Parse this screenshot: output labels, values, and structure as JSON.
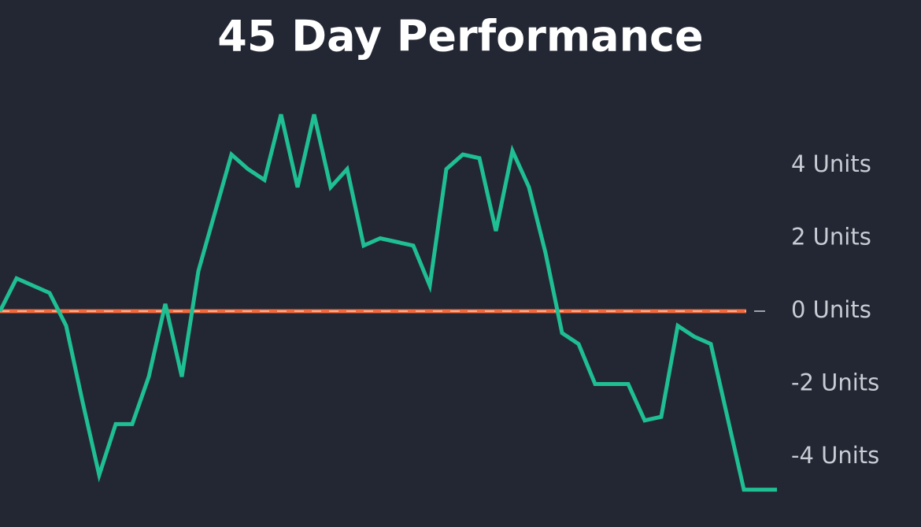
{
  "chart_data": {
    "type": "line",
    "title": "45 Day Performance",
    "series": [
      {
        "name": null,
        "color": "#1fbf93",
        "values": [
          0,
          0.9,
          0.7,
          0.5,
          -0.4,
          -2.5,
          -4.5,
          -3.1,
          -3.1,
          -1.8,
          0.2,
          -1.8,
          1.1,
          2.7,
          4.3,
          3.9,
          3.6,
          5.4,
          3.4,
          5.4,
          3.4,
          3.9,
          1.8,
          2.0,
          1.9,
          1.8,
          0.7,
          3.9,
          4.3,
          4.2,
          2.2,
          4.4,
          3.4,
          1.6,
          -0.6,
          -0.9,
          -2.0,
          -2.0,
          -2.0,
          -3.0,
          -2.9,
          -0.4,
          -0.7,
          -0.9,
          -2.9,
          -4.9,
          -4.9,
          -4.9
        ]
      }
    ],
    "reference_line": {
      "value": 0,
      "color": "#f26a3d"
    },
    "ylim": [
      -5.8,
      5.8
    ],
    "yticks": [
      {
        "value": -4,
        "label": "-4 Units"
      },
      {
        "value": -2,
        "label": "-2 Units"
      },
      {
        "value": 0,
        "label": "0 Units"
      },
      {
        "value": 2,
        "label": "2 Units"
      },
      {
        "value": 4,
        "label": "4 Units"
      }
    ],
    "grid": false
  }
}
